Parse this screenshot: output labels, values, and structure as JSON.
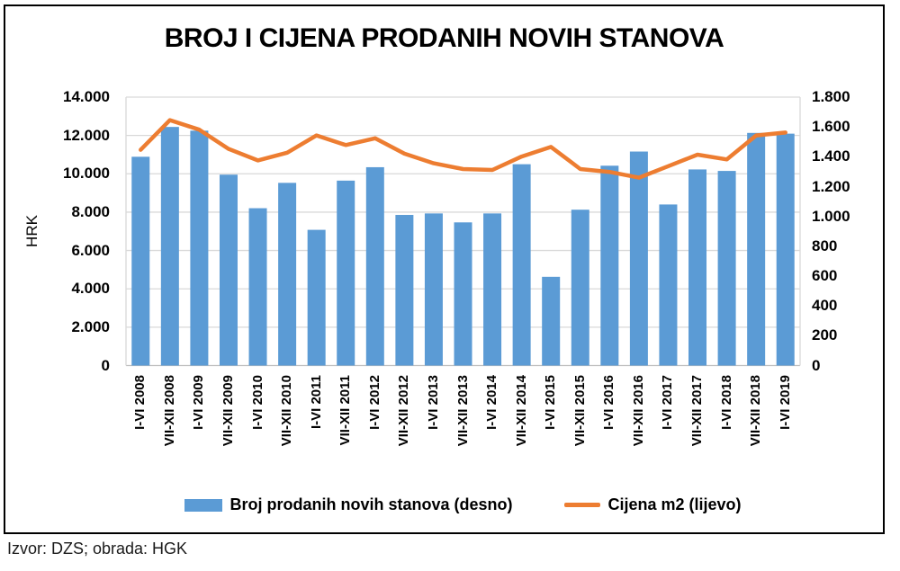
{
  "source": "Izvor: DZS; obrada: HGK",
  "chart_data": {
    "type": "combo-bar-line",
    "title": "BROJ I CIJENA PRODANIH NOVIH STANOVA",
    "categories": [
      "I-VI 2008",
      "VII-XII 2008",
      "I-VI 2009",
      "VII-XII 2009",
      "I-VI 2010",
      "VII-XII 2010",
      "I-VI 2011",
      "VII-XII 2011",
      "I-VI 2012",
      "VII-XII 2012",
      "I-VI 2013",
      "VII-XII 2013",
      "I-VI 2014",
      "VII-XII 2014",
      "I-VI 2015",
      "VII-XII 2015",
      "I-VI 2016",
      "VII-XII 2016",
      "I-VI 2017",
      "VII-XII 2017",
      "I-VI 2018",
      "VII-XII 2018",
      "I-VI 2019"
    ],
    "series": [
      {
        "name": "Broj prodanih novih stanova (desno)",
        "type": "bar",
        "axis": "right",
        "values": [
          1400,
          1600,
          1575,
          1280,
          1055,
          1225,
          910,
          1240,
          1330,
          1010,
          1020,
          960,
          1020,
          1350,
          595,
          1045,
          1340,
          1435,
          1080,
          1315,
          1305,
          1560,
          1555
        ]
      },
      {
        "name": "Cijena m2 (lijevo)",
        "type": "line",
        "axis": "left",
        "values": [
          11250,
          12800,
          12300,
          11300,
          10700,
          11100,
          12000,
          11500,
          11850,
          11050,
          10550,
          10250,
          10200,
          10900,
          11400,
          10250,
          10100,
          9800,
          10400,
          11000,
          10750,
          12000,
          12150
        ]
      }
    ],
    "left_axis": {
      "label": "HRK",
      "min": 0,
      "max": 14000,
      "step": 2000,
      "ticks": [
        "14.000",
        "12.000",
        "10.000",
        "8.000",
        "6.000",
        "4.000",
        "2.000",
        "0"
      ]
    },
    "right_axis": {
      "label": "",
      "min": 0,
      "max": 1800,
      "step": 200,
      "ticks": [
        "1.800",
        "1.600",
        "1.400",
        "1.200",
        "1.000",
        "800",
        "600",
        "400",
        "200",
        "0"
      ]
    },
    "grid": true,
    "legend_position": "bottom",
    "colors": {
      "bar": "#5B9BD5",
      "line": "#ED7D31",
      "gridline": "#D9D9D9",
      "axis_line": "#BFBFBF",
      "text": "#000000",
      "border": "#000000"
    }
  }
}
